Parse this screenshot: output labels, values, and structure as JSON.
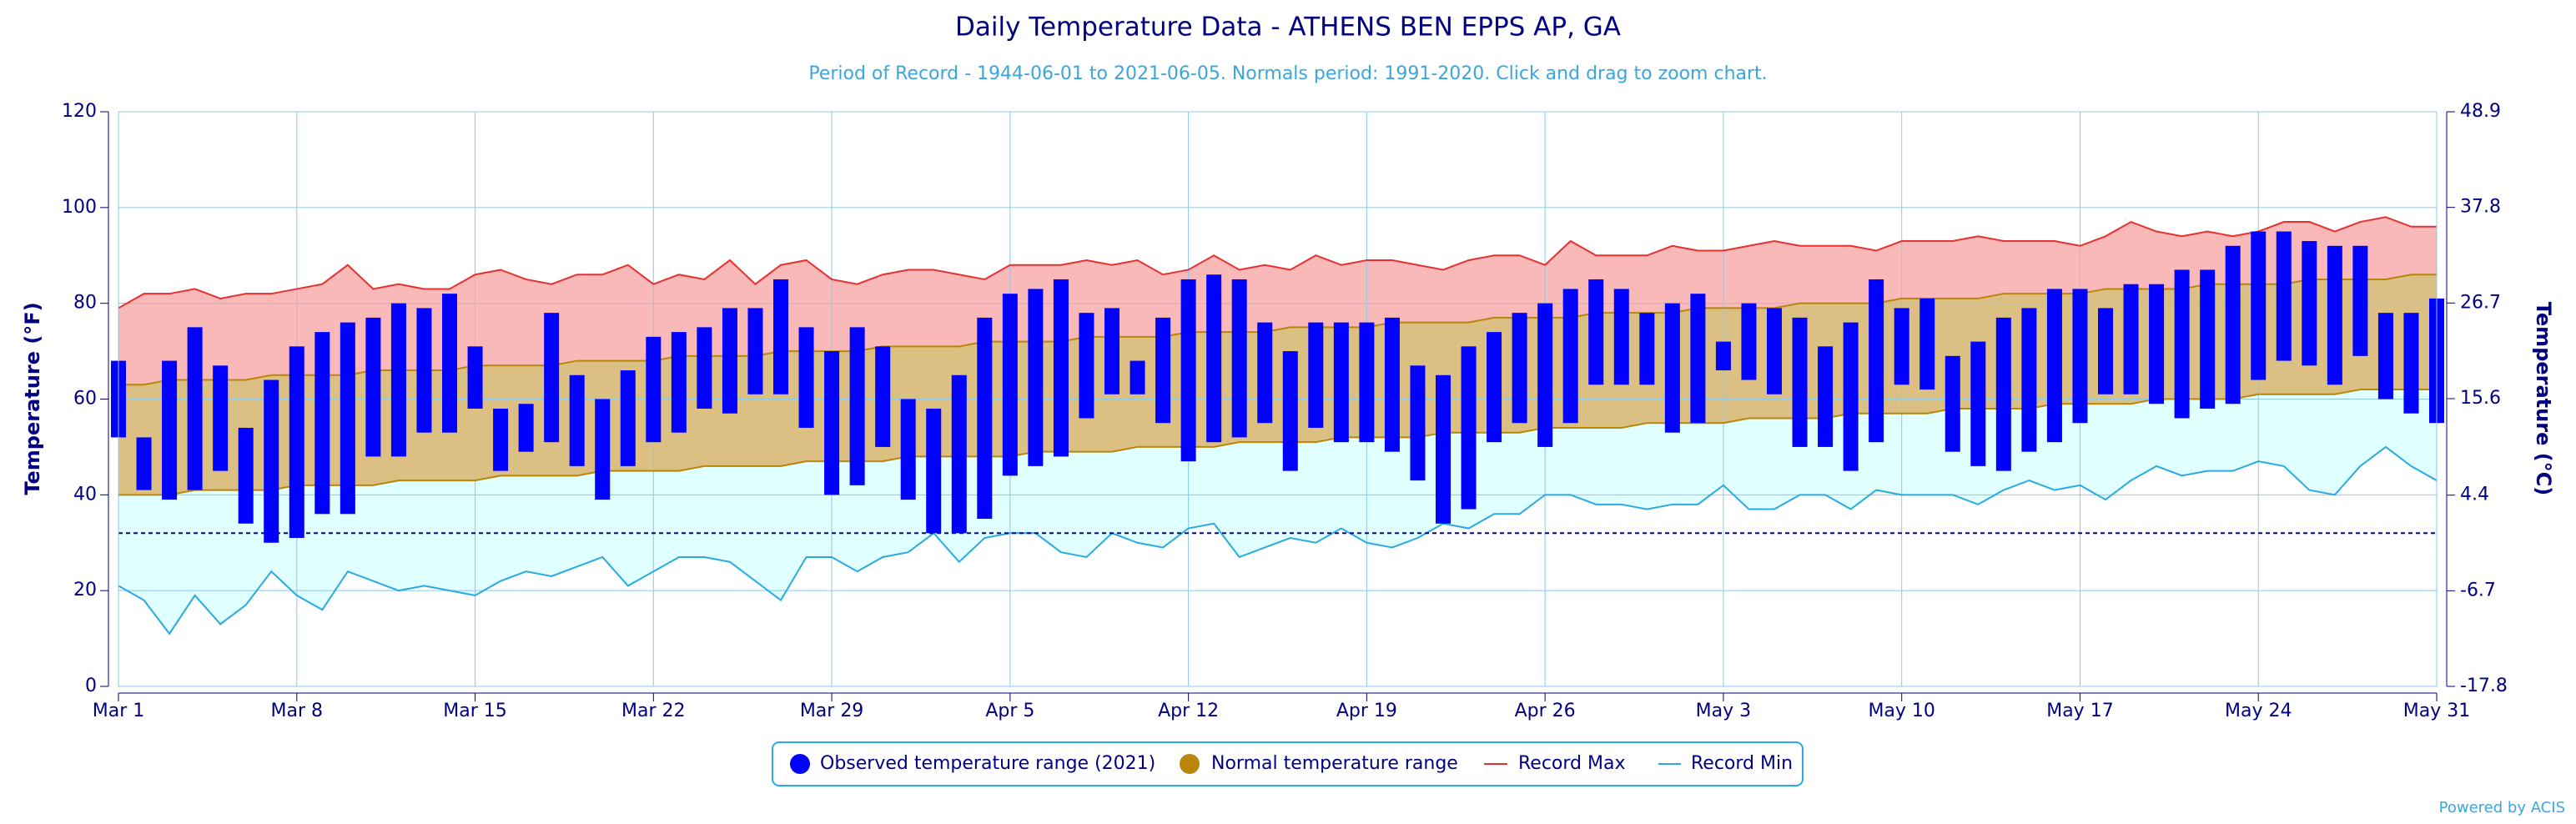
{
  "chart_data": {
    "type": "range",
    "title": "Daily Temperature Data - ATHENS BEN EPPS AP, GA",
    "subtitle": "Period of Record - 1944-06-01 to 2021-06-05. Normals period: 1991-2020. Click and drag to zoom chart.",
    "y_label": "Temperature (°F)",
    "y2_label": "Temperature (°C)",
    "credit": "Powered by ACIS",
    "categories": [
      "Mar 1",
      null,
      null,
      null,
      null,
      null,
      null,
      "Mar 8",
      null,
      null,
      null,
      null,
      null,
      null,
      "Mar 15",
      null,
      null,
      null,
      null,
      null,
      null,
      "Mar 22",
      null,
      null,
      null,
      null,
      null,
      null,
      "Mar 29",
      null,
      null,
      null,
      null,
      null,
      null,
      "Apr 5",
      null,
      null,
      null,
      null,
      null,
      null,
      "Apr 12",
      null,
      null,
      null,
      null,
      null,
      null,
      "Apr 19",
      null,
      null,
      null,
      null,
      null,
      null,
      "Apr 26",
      null,
      null,
      null,
      null,
      null,
      null,
      "May 3",
      null,
      null,
      null,
      null,
      null,
      null,
      "May 10",
      null,
      null,
      null,
      null,
      null,
      null,
      "May 17",
      null,
      null,
      null,
      null,
      null,
      null,
      "May 24",
      null,
      null,
      null,
      null,
      null,
      null,
      "May 31"
    ],
    "series": [
      {
        "name": "Observed temperature range (2021)",
        "color": "#0000ff",
        "low": [
          52,
          41,
          39,
          41,
          45,
          34,
          30,
          31,
          36,
          36,
          48,
          48,
          53,
          53,
          58,
          45,
          49,
          51,
          46,
          39,
          46,
          51,
          53,
          58,
          57,
          61,
          61,
          54,
          40,
          42,
          50,
          39,
          32,
          32,
          35,
          44,
          46,
          48,
          56,
          61,
          61,
          55,
          47,
          51,
          52,
          55,
          45,
          54,
          51,
          51,
          49,
          43,
          34,
          37,
          51,
          55,
          50,
          55,
          63,
          63,
          63,
          53,
          55,
          66,
          64,
          61,
          50,
          50,
          45,
          51,
          63,
          62,
          49,
          46,
          45,
          49,
          51,
          55,
          61,
          61,
          59,
          56,
          58,
          59,
          64,
          68,
          67,
          63,
          69,
          60,
          57,
          55
        ],
        "high": [
          68,
          52,
          68,
          75,
          67,
          54,
          64,
          71,
          74,
          76,
          77,
          80,
          79,
          82,
          71,
          58,
          59,
          78,
          65,
          60,
          66,
          73,
          74,
          75,
          79,
          79,
          85,
          75,
          70,
          75,
          71,
          60,
          58,
          65,
          77,
          82,
          83,
          85,
          78,
          79,
          68,
          77,
          85,
          86,
          85,
          76,
          70,
          76,
          76,
          76,
          77,
          67,
          65,
          71,
          74,
          78,
          80,
          83,
          85,
          83,
          78,
          80,
          82,
          72,
          80,
          79,
          77,
          71,
          76,
          85,
          79,
          81,
          69,
          72,
          77,
          79,
          83,
          83,
          79,
          84,
          84,
          87,
          87,
          92,
          95,
          95,
          93,
          92,
          92,
          78,
          78,
          81
        ]
      },
      {
        "name": "Normal temperature range",
        "color": "#b8860b",
        "fill": "#dcc083",
        "low": [
          40,
          40,
          40,
          41,
          41,
          41,
          41,
          42,
          42,
          42,
          42,
          43,
          43,
          43,
          43,
          44,
          44,
          44,
          44,
          45,
          45,
          45,
          45,
          46,
          46,
          46,
          46,
          47,
          47,
          47,
          47,
          48,
          48,
          48,
          48,
          48,
          49,
          49,
          49,
          49,
          50,
          50,
          50,
          50,
          51,
          51,
          51,
          51,
          52,
          52,
          52,
          52,
          53,
          53,
          53,
          53,
          54,
          54,
          54,
          54,
          55,
          55,
          55,
          55,
          56,
          56,
          56,
          56,
          57,
          57,
          57,
          57,
          58,
          58,
          58,
          58,
          59,
          59,
          59,
          59,
          60,
          60,
          60,
          60,
          61,
          61,
          61,
          61,
          62,
          62,
          62,
          62
        ],
        "high": [
          63,
          63,
          64,
          64,
          64,
          64,
          65,
          65,
          65,
          65,
          66,
          66,
          66,
          66,
          67,
          67,
          67,
          67,
          68,
          68,
          68,
          68,
          69,
          69,
          69,
          69,
          70,
          70,
          70,
          70,
          71,
          71,
          71,
          71,
          72,
          72,
          72,
          72,
          73,
          73,
          73,
          73,
          74,
          74,
          74,
          74,
          75,
          75,
          75,
          75,
          76,
          76,
          76,
          76,
          77,
          77,
          77,
          77,
          78,
          78,
          78,
          78,
          79,
          79,
          79,
          79,
          80,
          80,
          80,
          80,
          81,
          81,
          81,
          81,
          82,
          82,
          82,
          82,
          83,
          83,
          83,
          83,
          84,
          84,
          84,
          84,
          85,
          85,
          85,
          85,
          86,
          86
        ]
      },
      {
        "name": "Record Max",
        "color": "#e8302f",
        "fill": "#f9b9b8",
        "values": [
          79,
          82,
          82,
          83,
          81,
          82,
          82,
          83,
          84,
          88,
          83,
          84,
          83,
          83,
          86,
          87,
          85,
          84,
          86,
          86,
          88,
          84,
          86,
          85,
          89,
          84,
          88,
          89,
          85,
          84,
          86,
          87,
          87,
          86,
          85,
          88,
          88,
          88,
          89,
          88,
          89,
          86,
          87,
          90,
          87,
          88,
          87,
          90,
          88,
          89,
          89,
          88,
          87,
          89,
          90,
          90,
          88,
          93,
          90,
          90,
          90,
          92,
          91,
          91,
          92,
          93,
          92,
          92,
          92,
          91,
          93,
          93,
          93,
          94,
          93,
          93,
          93,
          92,
          94,
          97,
          95,
          94,
          95,
          94,
          95,
          97,
          97,
          95,
          97,
          98,
          96,
          96
        ]
      },
      {
        "name": "Record Min",
        "color": "#29abe2",
        "fill": "#e0ffff",
        "values": [
          21,
          18,
          11,
          19,
          13,
          17,
          24,
          19,
          16,
          24,
          22,
          20,
          21,
          20,
          19,
          22,
          24,
          23,
          25,
          27,
          21,
          24,
          27,
          27,
          26,
          22,
          18,
          27,
          27,
          24,
          27,
          28,
          32,
          26,
          31,
          32,
          32,
          28,
          27,
          32,
          30,
          29,
          33,
          34,
          27,
          29,
          31,
          30,
          33,
          30,
          29,
          31,
          34,
          33,
          36,
          36,
          40,
          40,
          38,
          38,
          37,
          38,
          38,
          42,
          37,
          37,
          40,
          40,
          37,
          41,
          40,
          40,
          40,
          38,
          41,
          43,
          41,
          42,
          39,
          43,
          46,
          44,
          45,
          45,
          47,
          46,
          41,
          40,
          46,
          50,
          46,
          43
        ]
      }
    ],
    "freezing_line": 32,
    "ylim": [
      0,
      120
    ],
    "yticks": [
      0,
      20,
      40,
      60,
      80,
      100,
      120
    ],
    "y2lim": [
      -17.8,
      48.9
    ],
    "y2ticks": [
      -17.8,
      -6.7,
      4.4,
      15.6,
      26.7,
      37.8,
      48.9
    ],
    "grid": true
  }
}
